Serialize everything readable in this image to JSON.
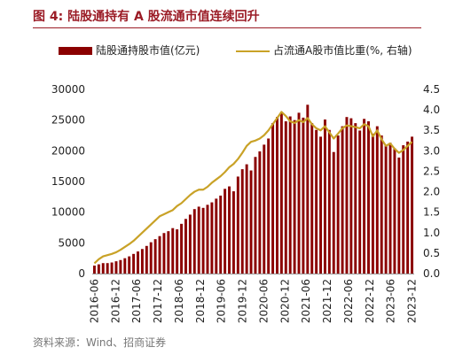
{
  "title": "图 4:  陆股通持有 A 股流通市值连续回升",
  "source": "资料来源：Wind、招商证券",
  "colors": {
    "bar": "#8b0000",
    "line": "#c9a227",
    "title": "#9b1c26"
  },
  "chart_data": {
    "type": "bar+line",
    "x_tick_labels": [
      "2016-06",
      "2016-12",
      "2017-06",
      "2017-12",
      "2018-06",
      "2018-12",
      "2019-06",
      "2019-12",
      "2020-06",
      "2020-12",
      "2021-06",
      "2021-12",
      "2022-06",
      "2022-12",
      "2023-06",
      "2023-12"
    ],
    "left_axis": {
      "ylim": [
        0,
        30000
      ],
      "ticks": [
        0,
        5000,
        10000,
        15000,
        20000,
        25000,
        30000
      ]
    },
    "right_axis": {
      "ylim": [
        0,
        4.5
      ],
      "ticks": [
        "0.0",
        "0.5",
        "1.0",
        "1.5",
        "2.0",
        "2.5",
        "3.0",
        "3.5",
        "4.0",
        "4.5"
      ]
    },
    "legend_position": "top",
    "series": [
      {
        "name": "陆股通持股市值(亿元)",
        "type": "bar",
        "axis": "left",
        "values": [
          1300,
          1500,
          1700,
          1700,
          1800,
          2000,
          2200,
          2500,
          2800,
          3200,
          3600,
          4000,
          4500,
          5100,
          5600,
          6100,
          6600,
          6900,
          7400,
          7200,
          8100,
          8900,
          9600,
          10500,
          10900,
          10700,
          11200,
          11600,
          12200,
          12700,
          13800,
          14200,
          13400,
          15800,
          17000,
          17800,
          16800,
          19000,
          19900,
          21000,
          22000,
          24500,
          25500,
          26200,
          24800,
          25600,
          25000,
          26200,
          25400,
          27500,
          24500,
          23400,
          22300,
          25100,
          23400,
          19800,
          22500,
          24000,
          25500,
          25300,
          24500,
          23300,
          25200,
          24800,
          22800,
          24000,
          22500,
          20900,
          21300,
          20400,
          18900,
          20900,
          21500,
          22300
        ]
      },
      {
        "name": "占流通A股市值比重(%, 右轴)",
        "type": "line",
        "axis": "right",
        "values": [
          0.25,
          0.35,
          0.42,
          0.45,
          0.48,
          0.52,
          0.58,
          0.65,
          0.72,
          0.8,
          0.9,
          1.0,
          1.1,
          1.2,
          1.3,
          1.4,
          1.45,
          1.5,
          1.55,
          1.65,
          1.72,
          1.82,
          1.92,
          2.0,
          2.05,
          2.05,
          2.12,
          2.22,
          2.3,
          2.38,
          2.48,
          2.6,
          2.68,
          2.8,
          2.95,
          3.12,
          3.22,
          3.25,
          3.3,
          3.38,
          3.5,
          3.65,
          3.8,
          3.95,
          3.85,
          3.72,
          3.68,
          3.75,
          3.7,
          3.8,
          3.65,
          3.55,
          3.5,
          3.6,
          3.45,
          3.3,
          3.42,
          3.55,
          3.62,
          3.6,
          3.58,
          3.55,
          3.65,
          3.6,
          3.35,
          3.5,
          3.28,
          3.12,
          3.18,
          3.05,
          2.95,
          3.02,
          3.12,
          3.22
        ]
      }
    ]
  }
}
